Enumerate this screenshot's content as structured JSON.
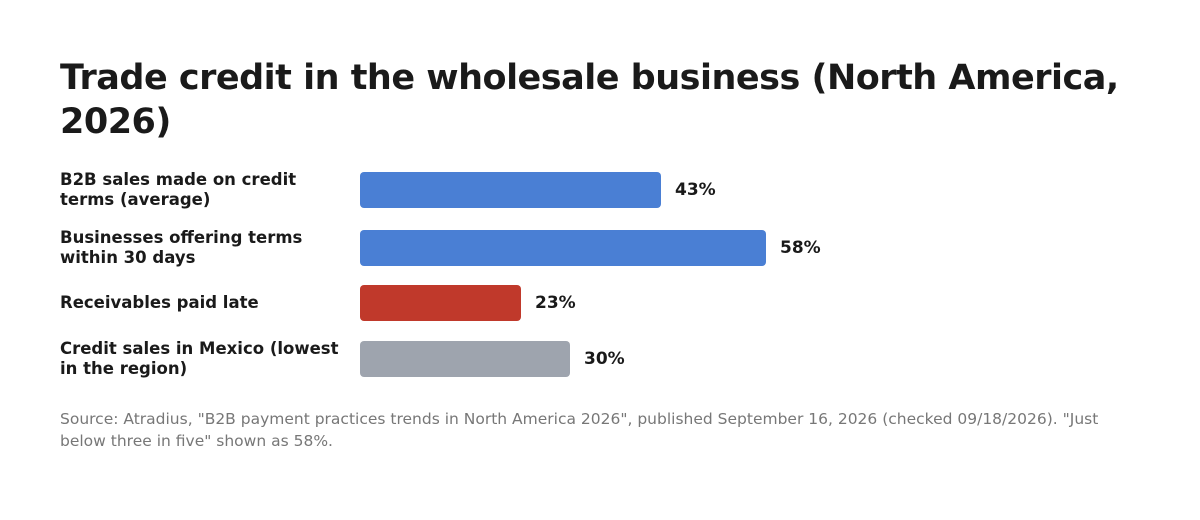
{
  "chart_data": {
    "type": "bar",
    "orientation": "horizontal",
    "title": "Trade credit in the wholesale business (North America, 2026)",
    "categories": [
      "B2B sales made on credit terms (average)",
      "Businesses offering terms within 30 days",
      "Receivables paid late",
      "Credit sales in Mexico (lowest in the region)"
    ],
    "values": [
      43,
      58,
      23,
      30
    ],
    "value_labels": [
      "43%",
      "58%",
      "23%",
      "30%"
    ],
    "colors": [
      "#4a7fd4",
      "#4a7fd4",
      "#c0392b",
      "#9ea4ae"
    ],
    "note": "Source: Atradius, \"B2B payment practices trends in North America 2026\", published September 16, 2026 (checked 09/18/2026). \"Just below three in five\" shown as 58%."
  }
}
